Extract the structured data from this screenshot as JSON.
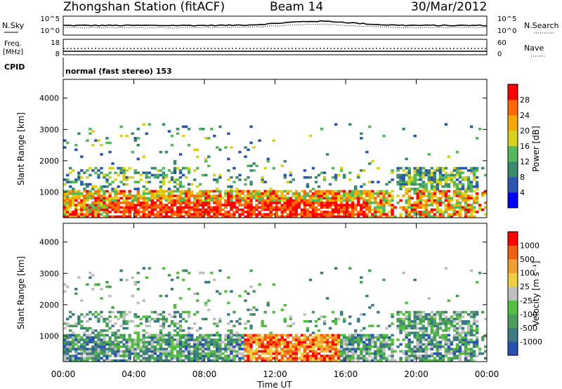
{
  "header": {
    "title": "Zhongshan Station (fitACF)",
    "beam": "Beam 14",
    "date": "30/Mar/2012"
  },
  "sky_panel": {
    "left_label": "N.Sky",
    "left_ticks": [
      "10^5",
      "10^0"
    ],
    "right_label": "N.Search",
    "right_ticks": [
      "10^5",
      "10^0"
    ]
  },
  "freq_panel": {
    "left_label_1": "Freq.",
    "left_label_2": "[MHz]",
    "left_ticks": [
      "18",
      "8"
    ],
    "right_label": "Nave",
    "right_ticks": [
      "60",
      "0"
    ]
  },
  "cpid": {
    "label": "CPID",
    "mode": "normal (fast stereo) 153"
  },
  "chart_data": [
    {
      "type": "heatmap",
      "name": "power",
      "ylabel": "Slant Range [km]",
      "ylim": [
        180,
        4600
      ],
      "yticks": [
        "4000",
        "3000",
        "2000",
        "1000"
      ],
      "colorbar_label": "Power [dB]",
      "colorbar_ticks": [
        "28",
        "24",
        "20",
        "16",
        "12",
        "8",
        "4"
      ],
      "colorbar_colors": [
        "#0000ff",
        "#2a55b0",
        "#3b8a6a",
        "#55b85a",
        "#d8d21e",
        "#f6a800",
        "#ff6a00",
        "#ff0000"
      ],
      "colorbar_range": [
        0,
        32
      ]
    },
    {
      "type": "heatmap",
      "name": "velocity",
      "ylabel": "Slant Range [km]",
      "ylim": [
        180,
        4600
      ],
      "yticks": [
        "4000",
        "3000",
        "2000",
        "1000"
      ],
      "colorbar_label": "Velocity [m s⁻¹]",
      "colorbar_ticks": [
        "1000",
        "500",
        "100",
        "25",
        "-25",
        "-100",
        "-500",
        "-1000"
      ],
      "colorbar_colors": [
        "#2850b0",
        "#3b7a80",
        "#4a9e5a",
        "#55c040",
        "#bfbfbf",
        "#f0d040",
        "#f0a030",
        "#f06010",
        "#ff0000"
      ]
    }
  ],
  "x_axis": {
    "label": "Time UT",
    "ticks": [
      "00:00",
      "04:00",
      "08:00",
      "12:00",
      "16:00",
      "20:00",
      "00:00"
    ]
  }
}
